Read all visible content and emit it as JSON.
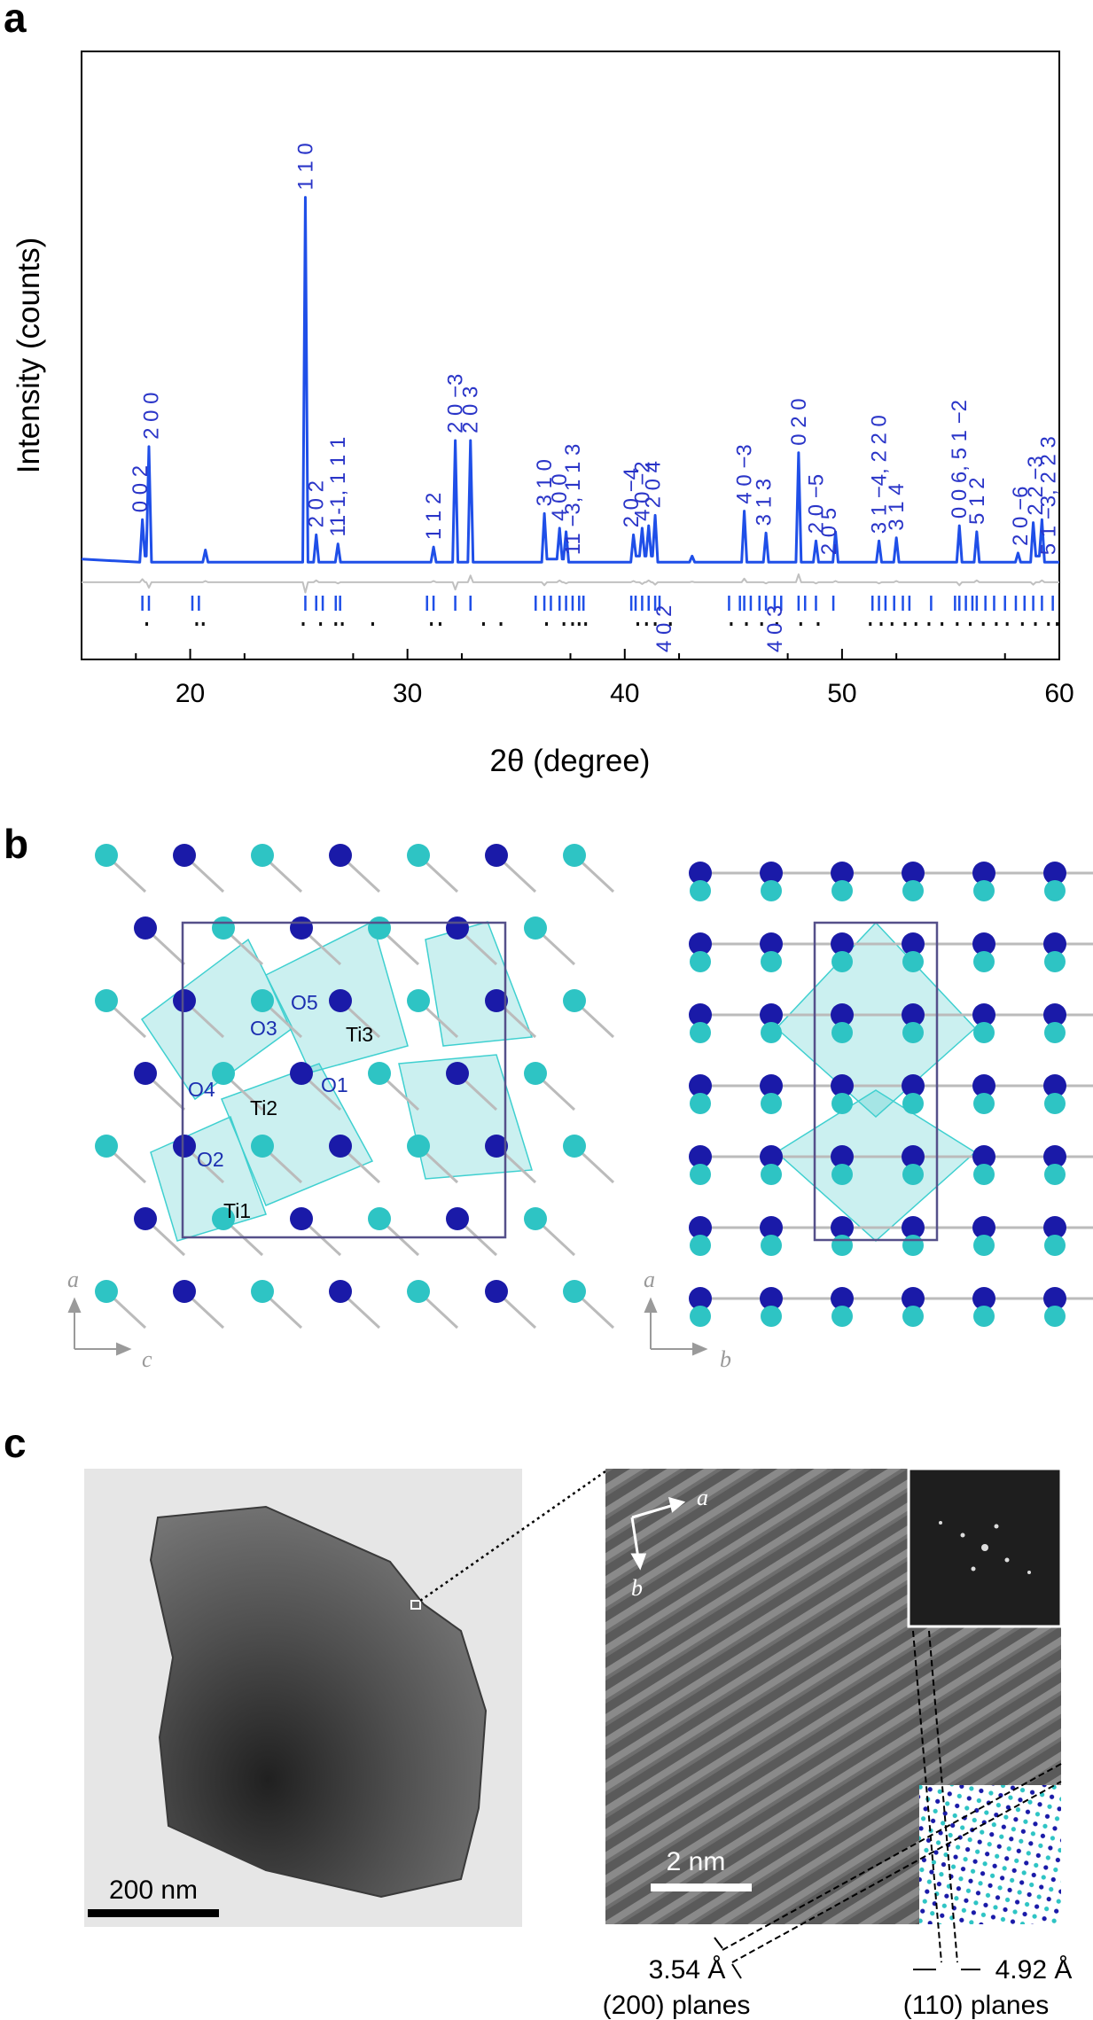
{
  "panel_labels": [
    "a",
    "b",
    "c"
  ],
  "chart_data": {
    "type": "line",
    "xlabel": "2θ (degree)",
    "ylabel": "Intensity (counts)",
    "xlim": [
      15,
      60
    ],
    "xticks": [
      20,
      30,
      40,
      50,
      60
    ],
    "ylim": [
      0,
      100
    ],
    "x": [
      15,
      17.68,
      17.8,
      17.92,
      17.98,
      18.1,
      18.22,
      20.58,
      20.7,
      20.82,
      25.18,
      25.3,
      25.42,
      25.68,
      25.8,
      25.92,
      26.68,
      26.8,
      26.92,
      31.08,
      31.2,
      31.32,
      32.08,
      32.2,
      32.32,
      32.78,
      32.9,
      33.02,
      36.18,
      36.3,
      36.42,
      36.88,
      37.0,
      37.12,
      37.18,
      37.3,
      37.42,
      40.28,
      40.4,
      40.52,
      40.68,
      40.8,
      40.92,
      40.98,
      41.1,
      41.22,
      41.28,
      41.4,
      41.52,
      42.98,
      43.1,
      43.22,
      45.38,
      45.5,
      45.62,
      46.38,
      46.5,
      46.62,
      47.88,
      48.0,
      48.12,
      48.68,
      48.8,
      48.92,
      49.58,
      49.7,
      49.82,
      51.58,
      51.7,
      51.82,
      52.38,
      52.5,
      52.62,
      55.28,
      55.4,
      55.52,
      56.08,
      56.2,
      56.32,
      57.98,
      58.1,
      58.22,
      58.68,
      58.8,
      58.92,
      59.08,
      59.2,
      59.32,
      60
    ],
    "series": [
      {
        "color": "#1f4fe8",
        "values": [
          16.5,
          16,
          23,
          17,
          17,
          35,
          16,
          16,
          18,
          16,
          16,
          76,
          16,
          16,
          20.5,
          16,
          16,
          19,
          16,
          16,
          18.5,
          16,
          16,
          36,
          16,
          16,
          36,
          16,
          16,
          24,
          16.5,
          16.5,
          21.6,
          16.5,
          16.5,
          21,
          16,
          16,
          20.5,
          17,
          17,
          21.6,
          17,
          17,
          22,
          17,
          17,
          23.7,
          16,
          16,
          17,
          16,
          16,
          24.4,
          16,
          16,
          20.8,
          16,
          16,
          34,
          16,
          16,
          19.5,
          16,
          16,
          21,
          16,
          16,
          19.5,
          16,
          16,
          20,
          16,
          16,
          22,
          16,
          16,
          21,
          16,
          16,
          17.5,
          16,
          16,
          22.5,
          17,
          17,
          23,
          16,
          16
        ]
      },
      {
        "color": "#c0c0c0",
        "values": [
          12.7,
          12.7,
          13.2,
          12.7,
          12.7,
          11.8,
          12.7,
          12.7,
          12.9,
          12.7,
          12.7,
          11,
          12.7,
          12.7,
          13,
          12.7,
          12.7,
          12.5,
          12.7,
          12.7,
          12.9,
          12.7,
          12.7,
          11.5,
          12.7,
          12.7,
          13.8,
          12.7,
          12.7,
          12.2,
          12.7,
          12.7,
          13,
          12.7,
          12.7,
          12.5,
          12.7,
          12.7,
          12.9,
          12.7,
          12.7,
          12.4,
          12.7,
          12.7,
          13,
          12.7,
          12.7,
          12.3,
          12.7,
          12.7,
          12.8,
          12.7,
          12.7,
          13.3,
          12.7,
          12.7,
          12.5,
          12.7,
          12.7,
          14,
          12.7,
          12.7,
          12.5,
          12.7,
          12.7,
          12.9,
          12.7,
          12.7,
          12.5,
          12.7,
          12.7,
          12.9,
          12.7,
          12.7,
          12.2,
          12.7,
          12.7,
          13,
          12.7,
          12.7,
          12.7,
          12.7,
          12.7,
          12.3,
          12.7,
          12.7,
          13,
          12.7,
          12.7
        ]
      }
    ],
    "reflection_ticks": [
      {
        "color": "#1f4fe8",
        "positions": [
          17.8,
          18.1,
          20.1,
          20.4,
          25.3,
          25.8,
          26.1,
          26.7,
          26.9,
          30.9,
          31.2,
          32.2,
          32.9,
          35.9,
          36.3,
          36.6,
          37.0,
          37.3,
          37.6,
          37.9,
          38.1,
          40.3,
          40.5,
          40.8,
          41.1,
          41.4,
          41.6,
          44.8,
          45.3,
          45.5,
          45.8,
          46.2,
          46.5,
          46.9,
          47.2,
          48.0,
          48.3,
          48.8,
          49.6,
          51.4,
          51.7,
          52.0,
          52.4,
          52.8,
          53.1,
          54.1,
          55.2,
          55.4,
          55.7,
          56.0,
          56.2,
          56.6,
          57.0,
          57.5,
          58.0,
          58.4,
          58.8,
          59.2,
          59.7
        ]
      },
      {
        "color": "#111111",
        "positions": [
          18.0,
          20.3,
          20.6,
          25.2,
          26.0,
          26.7,
          27.0,
          28.4,
          31.1,
          31.5,
          33.5,
          34.3,
          36.4,
          37.2,
          37.6,
          37.9,
          38.2,
          40.6,
          41.0,
          41.4,
          42.1,
          44.9,
          45.6,
          46.3,
          47.0,
          48.1,
          48.9,
          51.3,
          51.8,
          52.3,
          52.9,
          53.4,
          54.0,
          54.6,
          55.3,
          55.9,
          56.5,
          57.1,
          57.6,
          58.3,
          58.9,
          59.5,
          59.9
        ]
      }
    ],
    "annotation_color": "#2a35c8",
    "annotations": [
      {
        "text": "0 0 2",
        "x": 17.7
      },
      {
        "text": "2 0 0",
        "x": 18.2
      },
      {
        "text": "1 1 0",
        "x": 25.3
      },
      {
        "text": "2 0 2",
        "x": 25.8
      },
      {
        "text": "11-1, 1 1 1",
        "x": 26.8
      },
      {
        "text": "1 1 2",
        "x": 31.2
      },
      {
        "text": "2 0 −3",
        "x": 32.2
      },
      {
        "text": "2 0 3",
        "x": 32.9
      },
      {
        "text": "3 1 0",
        "x": 36.3
      },
      {
        "text": "4 0 0",
        "x": 37.0
      },
      {
        "text": "11 −3, 1 1 3",
        "x": 37.6
      },
      {
        "text": "2 0 −4",
        "x": 40.3
      },
      {
        "text": "4 0 −2",
        "x": 40.8
      },
      {
        "text": "2 0 4",
        "x": 41.3
      },
      {
        "text": "4 0 2",
        "x": 41.8
      },
      {
        "text": "4 0 −3",
        "x": 45.5
      },
      {
        "text": "3 1 3",
        "x": 46.4
      },
      {
        "text": "4 0 3",
        "x": 46.9
      },
      {
        "text": "0 2 0",
        "x": 48.0
      },
      {
        "text": "2 0 −5",
        "x": 48.8
      },
      {
        "text": "2 0 5",
        "x": 49.4
      },
      {
        "text": "3 1 −4, 2 2 0",
        "x": 51.7
      },
      {
        "text": "3 1 4",
        "x": 52.5
      },
      {
        "text": "0 0 6, 5 1 −2",
        "x": 55.4
      },
      {
        "text": "5 1 2",
        "x": 56.2
      },
      {
        "text": "2 0 −6",
        "x": 58.2
      },
      {
        "text": "2 2 −3",
        "x": 58.9
      },
      {
        "text": "5 1 −3, 2 2 3",
        "x": 59.5
      }
    ]
  },
  "structure": {
    "atom_labels": [
      "O5",
      "O3",
      "Ti3",
      "O4",
      "O1",
      "Ti2",
      "O2",
      "Ti1"
    ],
    "axes_left": [
      "a",
      "c"
    ],
    "axes_right": [
      "a",
      "b"
    ]
  },
  "micrograph": {
    "scale_bar_left": "200 nm",
    "axes": [
      "a",
      "b"
    ],
    "scale_bar_right": "2 nm",
    "spacings": [
      "3.54 Å",
      "4.92 Å"
    ],
    "planes": [
      "(200) planes",
      "(110) planes"
    ]
  }
}
